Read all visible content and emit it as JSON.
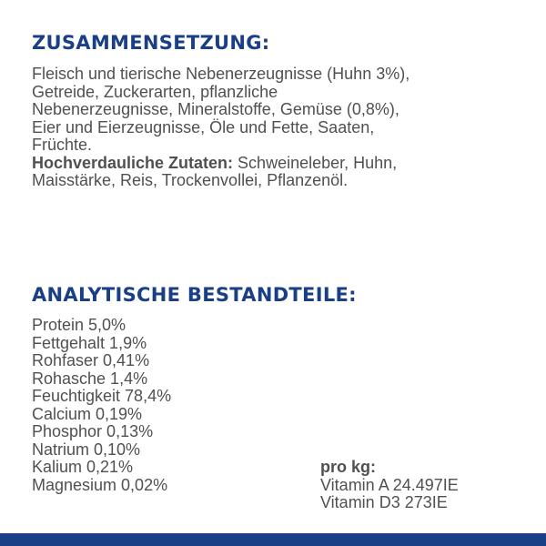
{
  "composition": {
    "heading": "ZUSAMMENSETZUNG:",
    "lines": [
      "Fleisch und tierische Nebenerzeugnisse (Huhn 3%),",
      "Getreide, Zuckerarten, pflanzliche",
      "Nebenerzeugnisse, Mineralstoffe, Gemüse (0,8%),",
      "Eier und Eierzeugnisse, Öle und Fette, Saaten,",
      "Früchte."
    ],
    "digestible_label": "Hochverdauliche Zutaten:",
    "digestible_text": " Schweineleber, Huhn,",
    "digestible_line2": "Maisstärke, Reis, Trockenvollei, Pflanzenöl."
  },
  "analytic": {
    "heading": "ANALYTISCHE BESTANDTEILE:",
    "items": [
      "Protein 5,0%",
      "Fettgehalt 1,9%",
      "Rohfaser 0,41%",
      "Rohasche 1,4%",
      "Feuchtigkeit 78,4%",
      "Calcium 0,19%",
      "Phosphor 0,13%",
      "Natrium 0,10%",
      "Kalium 0,21%",
      "Magnesium 0,02%"
    ]
  },
  "per_kg": {
    "title": "pro kg:",
    "items": [
      "Vitamin A 24.497IE",
      "Vitamin D3 273IE"
    ]
  },
  "colors": {
    "heading": "#1a3f86",
    "text": "#505052",
    "bar": "#1a3f86"
  }
}
